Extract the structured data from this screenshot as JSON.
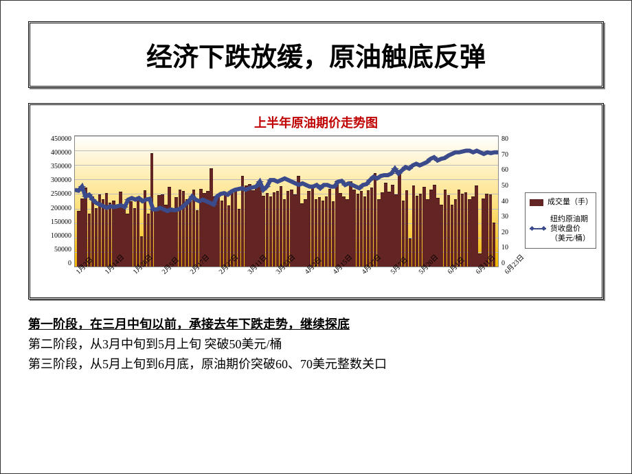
{
  "title": "经济下跌放缓，原油触底反弹",
  "chart": {
    "title": "上半年原油期价走势图",
    "type": "bar+line-dual-axis",
    "title_color": "#c00000",
    "title_fontsize": 18,
    "background_gradient_top": "#ffffff",
    "background_gradient_mid": "#ffe07a",
    "background_gradient_bottom": "#f0b400",
    "grid_color": "#bbbbbb",
    "bar_color": "#632523",
    "line_color": "#3a4a8a",
    "marker_style": "diamond",
    "y_left": {
      "label_implicit": "成交量（手）",
      "min": 0,
      "max": 450000,
      "step": 50000,
      "ticks": [
        "450000",
        "400000",
        "350000",
        "300000",
        "250000",
        "200000",
        "150000",
        "100000",
        "50000",
        "0"
      ]
    },
    "y_right": {
      "label_implicit": "纽约原油期货收盘价（美元/桶）",
      "min": 0,
      "max": 80,
      "step": 10,
      "ticks": [
        "80",
        "70",
        "60",
        "50",
        "40",
        "30",
        "20",
        "10",
        "0"
      ]
    },
    "x_ticks_shown": [
      "1月2日",
      "1月14日",
      "1月26日",
      "2月5日",
      "2月17日",
      "2月27日",
      "3月11日",
      "3月23日",
      "4月2日",
      "4月15日",
      "4月27日",
      "5月7日",
      "5月20日",
      "6月1日",
      "6月11日",
      "6月23日"
    ],
    "volume": [
      190000,
      232000,
      269000,
      181000,
      240000,
      198000,
      246000,
      230000,
      251000,
      219000,
      226000,
      201000,
      257000,
      211000,
      179000,
      222000,
      200000,
      239000,
      102000,
      261000,
      180000,
      388000,
      196000,
      245000,
      246000,
      210000,
      273000,
      194000,
      236000,
      263000,
      258000,
      230000,
      229000,
      264000,
      192000,
      266000,
      251000,
      259000,
      337000,
      239000,
      241000,
      225000,
      250000,
      208000,
      255000,
      265000,
      197000,
      310000,
      276000,
      283000,
      261000,
      270000,
      287000,
      242000,
      252000,
      240000,
      254000,
      258000,
      274000,
      230000,
      258000,
      264000,
      247000,
      310000,
      216000,
      230000,
      259000,
      272000,
      230000,
      236000,
      224000,
      239000,
      265000,
      223000,
      294000,
      251000,
      240000,
      230000,
      291000,
      263000,
      248000,
      259000,
      240000,
      260000,
      270000,
      320000,
      230000,
      254000,
      286000,
      257000,
      280000,
      246000,
      320000,
      224000,
      261000,
      94000,
      276000,
      241000,
      248000,
      273000,
      230000,
      264000,
      279000,
      235000,
      210000,
      263000,
      245000,
      210000,
      230000,
      263000,
      248000,
      253000,
      230000,
      239000,
      276000,
      43000,
      231000,
      249000,
      246000,
      150000
    ],
    "close_price": [
      47,
      46.5,
      49,
      43,
      44,
      41,
      39,
      38,
      37,
      36,
      37,
      36.5,
      37,
      37.5,
      36.5,
      41,
      42,
      41,
      42,
      40,
      41,
      41.5,
      35,
      35,
      36,
      35,
      34,
      35,
      34.5,
      35,
      36,
      38,
      40,
      43,
      41,
      40,
      41,
      40,
      39,
      38,
      43,
      44.5,
      45,
      44,
      46,
      47,
      47.5,
      48,
      47,
      48,
      48.5,
      49,
      52,
      47,
      49,
      53,
      53,
      52,
      53,
      54,
      53,
      52,
      51,
      50,
      51,
      50,
      49,
      49,
      50,
      48,
      50,
      50,
      49,
      49,
      52,
      52.5,
      50,
      51,
      50,
      49,
      48,
      50,
      50.5,
      53,
      55,
      54,
      55.5,
      56,
      56,
      57,
      60,
      57,
      59,
      61,
      60,
      62,
      63,
      62,
      63,
      64,
      66,
      67,
      65,
      66,
      66.5,
      68,
      69,
      70,
      70,
      70.5,
      71,
      71,
      70,
      71,
      70,
      69,
      70,
      69.5,
      70,
      70
    ],
    "legend": {
      "bar_label": "成交量（手）",
      "line_label": "纽约原油期货收盘价（美元/桶）"
    }
  },
  "phases": {
    "p1": "第一阶段，在三月中旬以前，承接去年下跌走势，继续探底",
    "p2": "第二阶段，从3月中旬到5月上旬   突破50美元/桶",
    "p3": "第三阶段，从5月上旬到6月底，原油期价突破60、70美元整数关口"
  }
}
